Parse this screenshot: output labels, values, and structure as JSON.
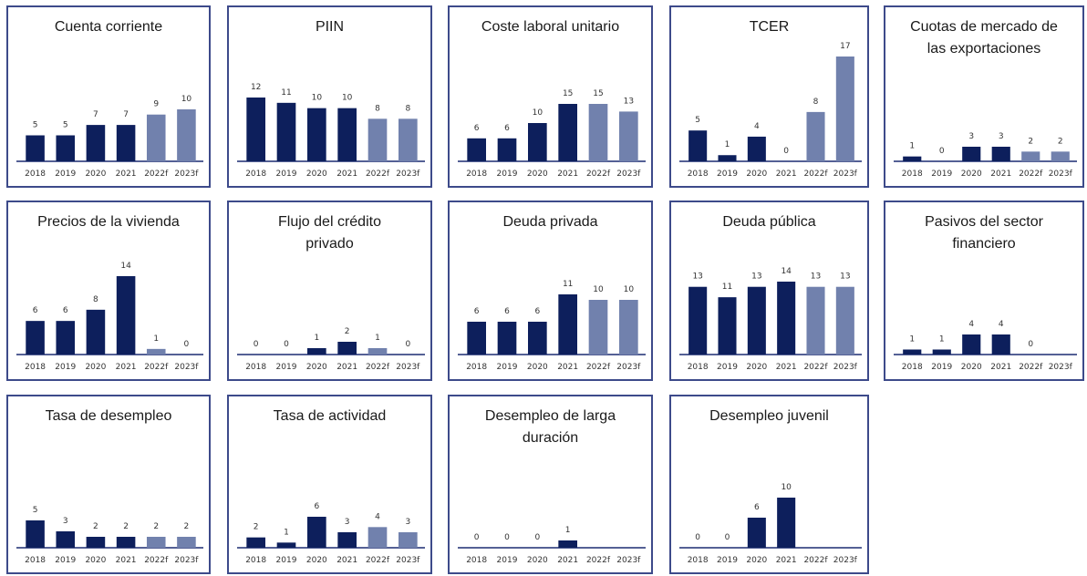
{
  "colors": {
    "actual": "#0d1f5c",
    "forecast": "#7181ad",
    "axis": "#1c2c72",
    "border": "#3d4a8a"
  },
  "chart_data": [
    {
      "type": "bar",
      "title": "Cuenta corriente",
      "categories": [
        "2018",
        "2019",
        "2020",
        "2021",
        "2022f",
        "2023f"
      ],
      "values": [
        5,
        5,
        7,
        7,
        9,
        10
      ],
      "forecast_from": 4
    },
    {
      "type": "bar",
      "title": "PIIN",
      "categories": [
        "2018",
        "2019",
        "2020",
        "2021",
        "2022f",
        "2023f"
      ],
      "values": [
        12,
        11,
        10,
        10,
        8,
        8
      ],
      "forecast_from": 4
    },
    {
      "type": "bar",
      "title": "Coste laboral unitario",
      "categories": [
        "2018",
        "2019",
        "2020",
        "2021",
        "2022f",
        "2023f"
      ],
      "values": [
        6,
        6,
        10,
        15,
        15,
        13
      ],
      "forecast_from": 4
    },
    {
      "type": "bar",
      "title": "TCER",
      "categories": [
        "2018",
        "2019",
        "2020",
        "2021",
        "2022f",
        "2023f"
      ],
      "values": [
        5,
        1,
        4,
        0,
        8,
        17
      ],
      "forecast_from": 4
    },
    {
      "type": "bar",
      "title": "Cuotas de mercado de\nlas exportaciones",
      "categories": [
        "2018",
        "2019",
        "2020",
        "2021",
        "2022f",
        "2023f"
      ],
      "values": [
        1,
        0,
        3,
        3,
        2,
        2
      ],
      "forecast_from": 4
    },
    {
      "type": "bar",
      "title": "Precios de la vivienda",
      "categories": [
        "2018",
        "2019",
        "2020",
        "2021",
        "2022f",
        "2023f"
      ],
      "values": [
        6,
        6,
        8,
        14,
        1,
        0
      ],
      "forecast_from": 4
    },
    {
      "type": "bar",
      "title": "Flujo del crédito\nprivado",
      "categories": [
        "2018",
        "2019",
        "2020",
        "2021",
        "2022f",
        "2023f"
      ],
      "values": [
        0,
        0,
        1,
        2,
        1,
        0
      ],
      "forecast_from": 4
    },
    {
      "type": "bar",
      "title": "Deuda privada",
      "categories": [
        "2018",
        "2019",
        "2020",
        "2021",
        "2022f",
        "2023f"
      ],
      "values": [
        6,
        6,
        6,
        11,
        10,
        10
      ],
      "forecast_from": 4
    },
    {
      "type": "bar",
      "title": "Deuda pública",
      "categories": [
        "2018",
        "2019",
        "2020",
        "2021",
        "2022f",
        "2023f"
      ],
      "values": [
        13,
        11,
        13,
        14,
        13,
        13
      ],
      "forecast_from": 4
    },
    {
      "type": "bar",
      "title": "Pasivos del sector\nfinanciero",
      "categories": [
        "2018",
        "2019",
        "2020",
        "2021",
        "2022f",
        "2023f"
      ],
      "values": [
        1,
        1,
        4,
        4,
        0,
        null
      ],
      "forecast_from": 4
    },
    {
      "type": "bar",
      "title": "Tasa de desempleo",
      "categories": [
        "2018",
        "2019",
        "2020",
        "2021",
        "2022f",
        "2023f"
      ],
      "values": [
        5,
        3,
        2,
        2,
        2,
        2
      ],
      "forecast_from": 4
    },
    {
      "type": "bar",
      "title": "Tasa de actividad",
      "categories": [
        "2018",
        "2019",
        "2020",
        "2021",
        "2022f",
        "2023f"
      ],
      "values": [
        2,
        1,
        6,
        3,
        4,
        3
      ],
      "forecast_from": 4
    },
    {
      "type": "bar",
      "title": "Desempleo de larga\nduración",
      "categories": [
        "2018",
        "2019",
        "2020",
        "2021",
        "2022f",
        "2023f"
      ],
      "values": [
        0,
        0,
        0,
        1,
        null,
        null
      ],
      "forecast_from": 4
    },
    {
      "type": "bar",
      "title": "Desempleo juvenil",
      "categories": [
        "2018",
        "2019",
        "2020",
        "2021",
        "2022f",
        "2023f"
      ],
      "values": [
        0,
        0,
        6,
        10,
        null,
        null
      ],
      "forecast_from": 4
    }
  ]
}
